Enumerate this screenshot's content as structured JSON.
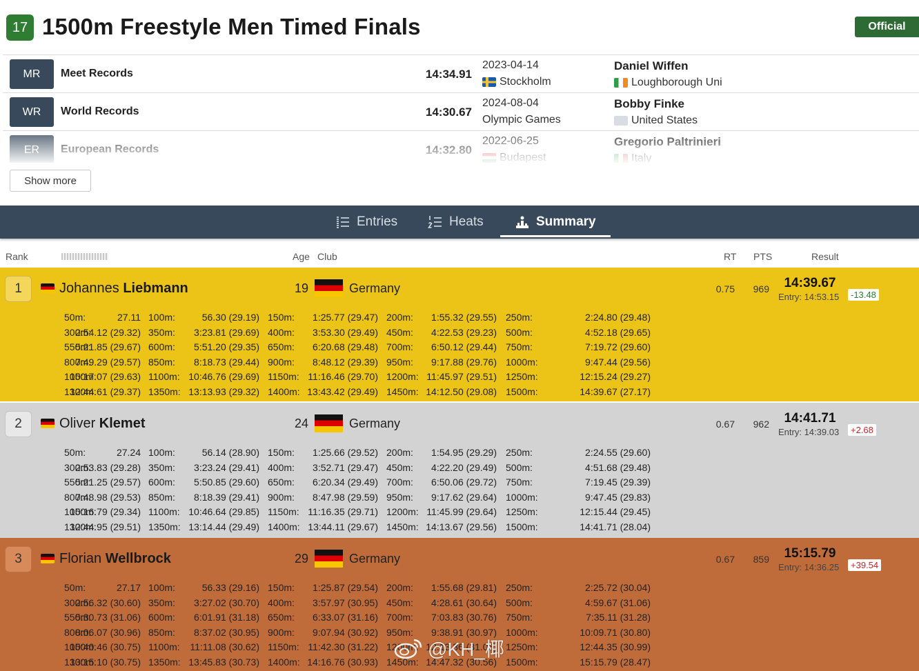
{
  "event": {
    "number": "17",
    "title": "1500m Freestyle Men Timed Finals",
    "status": "Official"
  },
  "records": [
    {
      "code": "MR",
      "name": "Meet Records",
      "time": "14:34.91",
      "date": "2023-04-14",
      "place": "Stockholm",
      "holder": "Daniel Wiffen",
      "club": "Loughborough Uni",
      "place_flag": "se",
      "club_flag": "ie"
    },
    {
      "code": "WR",
      "name": "World Records",
      "time": "14:30.67",
      "date": "2024-08-04",
      "place": "Olympic Games",
      "holder": "Bobby Finke",
      "club": "United States",
      "place_flag": "",
      "club_flag": "us"
    },
    {
      "code": "ER",
      "name": "European Records",
      "time": "14:32.80",
      "date": "2022-06-25",
      "place": "Budapest",
      "holder": "Gregorio Paltrinieri",
      "club": "Italy",
      "place_flag": "hu",
      "club_flag": "it"
    }
  ],
  "show_more_label": "Show more",
  "tabs": [
    {
      "label": "Entries",
      "icon": "list-numbered-icon"
    },
    {
      "label": "Heats",
      "icon": "heats-list-icon"
    },
    {
      "label": "Summary",
      "icon": "podium-icon",
      "active": true
    }
  ],
  "columns": {
    "rank": "Rank",
    "age": "Age",
    "club": "Club",
    "rt": "RT",
    "pts": "PTS",
    "result": "Result"
  },
  "colors": {
    "gold": "#ebc417",
    "silver": "#d3d3d3",
    "bronze": "#c06c3a",
    "nav": "#37495a",
    "official": "#2e6b34"
  },
  "results": [
    {
      "rank": "1",
      "first": "Johannes",
      "last": "Liebmann",
      "age": "19",
      "club": "Germany",
      "rt": "0.75",
      "pts": "969",
      "time": "14:39.67",
      "entry": "Entry: 14:53.15",
      "diff": "-13.48",
      "diff_sign": "neg",
      "splits": [
        [
          [
            "50m:",
            "27.11"
          ],
          [
            "100m:",
            "56.30 (29.19)"
          ],
          [
            "150m:",
            "1:25.77 (29.47)"
          ],
          [
            "200m:",
            "1:55.32 (29.55)"
          ],
          [
            "250m:",
            "2:24.80 (29.48)"
          ]
        ],
        [
          [
            "300m:",
            "2:54.12 (29.32)"
          ],
          [
            "350m:",
            "3:23.81 (29.69)"
          ],
          [
            "400m:",
            "3:53.30 (29.49)"
          ],
          [
            "450m:",
            "4:22.53 (29.23)"
          ],
          [
            "500m:",
            "4:52.18 (29.65)"
          ]
        ],
        [
          [
            "550m:",
            "5:21.85 (29.67)"
          ],
          [
            "600m:",
            "5:51.20 (29.35)"
          ],
          [
            "650m:",
            "6:20.68 (29.48)"
          ],
          [
            "700m:",
            "6:50.12 (29.44)"
          ],
          [
            "750m:",
            "7:19.72 (29.60)"
          ]
        ],
        [
          [
            "800m:",
            "7:49.29 (29.57)"
          ],
          [
            "850m:",
            "8:18.73 (29.44)"
          ],
          [
            "900m:",
            "8:48.12 (29.39)"
          ],
          [
            "950m:",
            "9:17.88 (29.76)"
          ],
          [
            "1000m:",
            "9:47.44 (29.56)"
          ]
        ],
        [
          [
            "1050m:",
            "10:17.07 (29.63)"
          ],
          [
            "1100m:",
            "10:46.76 (29.69)"
          ],
          [
            "1150m:",
            "11:16.46 (29.70)"
          ],
          [
            "1200m:",
            "11:45.97 (29.51)"
          ],
          [
            "1250m:",
            "12:15.24 (29.27)"
          ]
        ],
        [
          [
            "1300m:",
            "12:44.61 (29.37)"
          ],
          [
            "1350m:",
            "13:13.93 (29.32)"
          ],
          [
            "1400m:",
            "13:43.42 (29.49)"
          ],
          [
            "1450m:",
            "14:12.50 (29.08)"
          ],
          [
            "1500m:",
            "14:39.67 (27.17)"
          ]
        ]
      ]
    },
    {
      "rank": "2",
      "first": "Oliver",
      "last": "Klemet",
      "age": "24",
      "club": "Germany",
      "rt": "0.67",
      "pts": "962",
      "time": "14:41.71",
      "entry": "Entry: 14:39.03",
      "diff": "+2.68",
      "diff_sign": "pos",
      "splits": [
        [
          [
            "50m:",
            "27.24"
          ],
          [
            "100m:",
            "56.14 (28.90)"
          ],
          [
            "150m:",
            "1:25.66 (29.52)"
          ],
          [
            "200m:",
            "1:54.95 (29.29)"
          ],
          [
            "250m:",
            "2:24.55 (29.60)"
          ]
        ],
        [
          [
            "300m:",
            "2:53.83 (29.28)"
          ],
          [
            "350m:",
            "3:23.24 (29.41)"
          ],
          [
            "400m:",
            "3:52.71 (29.47)"
          ],
          [
            "450m:",
            "4:22.20 (29.49)"
          ],
          [
            "500m:",
            "4:51.68 (29.48)"
          ]
        ],
        [
          [
            "550m:",
            "5:21.25 (29.57)"
          ],
          [
            "600m:",
            "5:50.85 (29.60)"
          ],
          [
            "650m:",
            "6:20.34 (29.49)"
          ],
          [
            "700m:",
            "6:50.06 (29.72)"
          ],
          [
            "750m:",
            "7:19.45 (29.39)"
          ]
        ],
        [
          [
            "800m:",
            "7:48.98 (29.53)"
          ],
          [
            "850m:",
            "8:18.39 (29.41)"
          ],
          [
            "900m:",
            "8:47.98 (29.59)"
          ],
          [
            "950m:",
            "9:17.62 (29.64)"
          ],
          [
            "1000m:",
            "9:47.45 (29.83)"
          ]
        ],
        [
          [
            "1050m:",
            "10:16.79 (29.34)"
          ],
          [
            "1100m:",
            "10:46.64 (29.85)"
          ],
          [
            "1150m:",
            "11:16.35 (29.71)"
          ],
          [
            "1200m:",
            "11:45.99 (29.64)"
          ],
          [
            "1250m:",
            "12:15.44 (29.45)"
          ]
        ],
        [
          [
            "1300m:",
            "12:44.95 (29.51)"
          ],
          [
            "1350m:",
            "13:14.44 (29.49)"
          ],
          [
            "1400m:",
            "13:44.11 (29.67)"
          ],
          [
            "1450m:",
            "14:13.67 (29.56)"
          ],
          [
            "1500m:",
            "14:41.71 (28.04)"
          ]
        ]
      ]
    },
    {
      "rank": "3",
      "first": "Florian",
      "last": "Wellbrock",
      "age": "29",
      "club": "Germany",
      "rt": "0.67",
      "pts": "859",
      "time": "15:15.79",
      "entry": "Entry: 14:36.25",
      "diff": "+39.54",
      "diff_sign": "pos",
      "splits": [
        [
          [
            "50m:",
            "27.17"
          ],
          [
            "100m:",
            "56.33 (29.16)"
          ],
          [
            "150m:",
            "1:25.87 (29.54)"
          ],
          [
            "200m:",
            "1:55.68 (29.81)"
          ],
          [
            "250m:",
            "2:25.72 (30.04)"
          ]
        ],
        [
          [
            "300m:",
            "2:56.32 (30.60)"
          ],
          [
            "350m:",
            "3:27.02 (30.70)"
          ],
          [
            "400m:",
            "3:57.97 (30.95)"
          ],
          [
            "450m:",
            "4:28.61 (30.64)"
          ],
          [
            "500m:",
            "4:59.67 (31.06)"
          ]
        ],
        [
          [
            "550m:",
            "5:30.73 (31.06)"
          ],
          [
            "600m:",
            "6:01.91 (31.18)"
          ],
          [
            "650m:",
            "6:33.07 (31.16)"
          ],
          [
            "700m:",
            "7:03.83 (30.76)"
          ],
          [
            "750m:",
            "7:35.11 (31.28)"
          ]
        ],
        [
          [
            "800m:",
            "8:06.07 (30.96)"
          ],
          [
            "850m:",
            "8:37.02 (30.95)"
          ],
          [
            "900m:",
            "9:07.94 (30.92)"
          ],
          [
            "950m:",
            "9:38.91 (30.97)"
          ],
          [
            "1000m:",
            "10:09.71 (30.80)"
          ]
        ],
        [
          [
            "1050m:",
            "10:40.46 (30.75)"
          ],
          [
            "1100m:",
            "11:11.08 (30.62)"
          ],
          [
            "1150m:",
            "11:42.30 (31.22)"
          ],
          [
            "1200m:",
            "12:13.36 (31.06)"
          ],
          [
            "1250m:",
            "12:44.35 (30.99)"
          ]
        ],
        [
          [
            "1300m:",
            "13:15.10 (30.75)"
          ],
          [
            "1350m:",
            "13:45.83 (30.73)"
          ],
          [
            "1400m:",
            "14:16.76 (30.93)"
          ],
          [
            "1450m:",
            "14:47.32 (30.56)"
          ],
          [
            "1500m:",
            "15:15.79 (28.47)"
          ]
        ]
      ]
    }
  ],
  "watermark": "@KH_椰"
}
